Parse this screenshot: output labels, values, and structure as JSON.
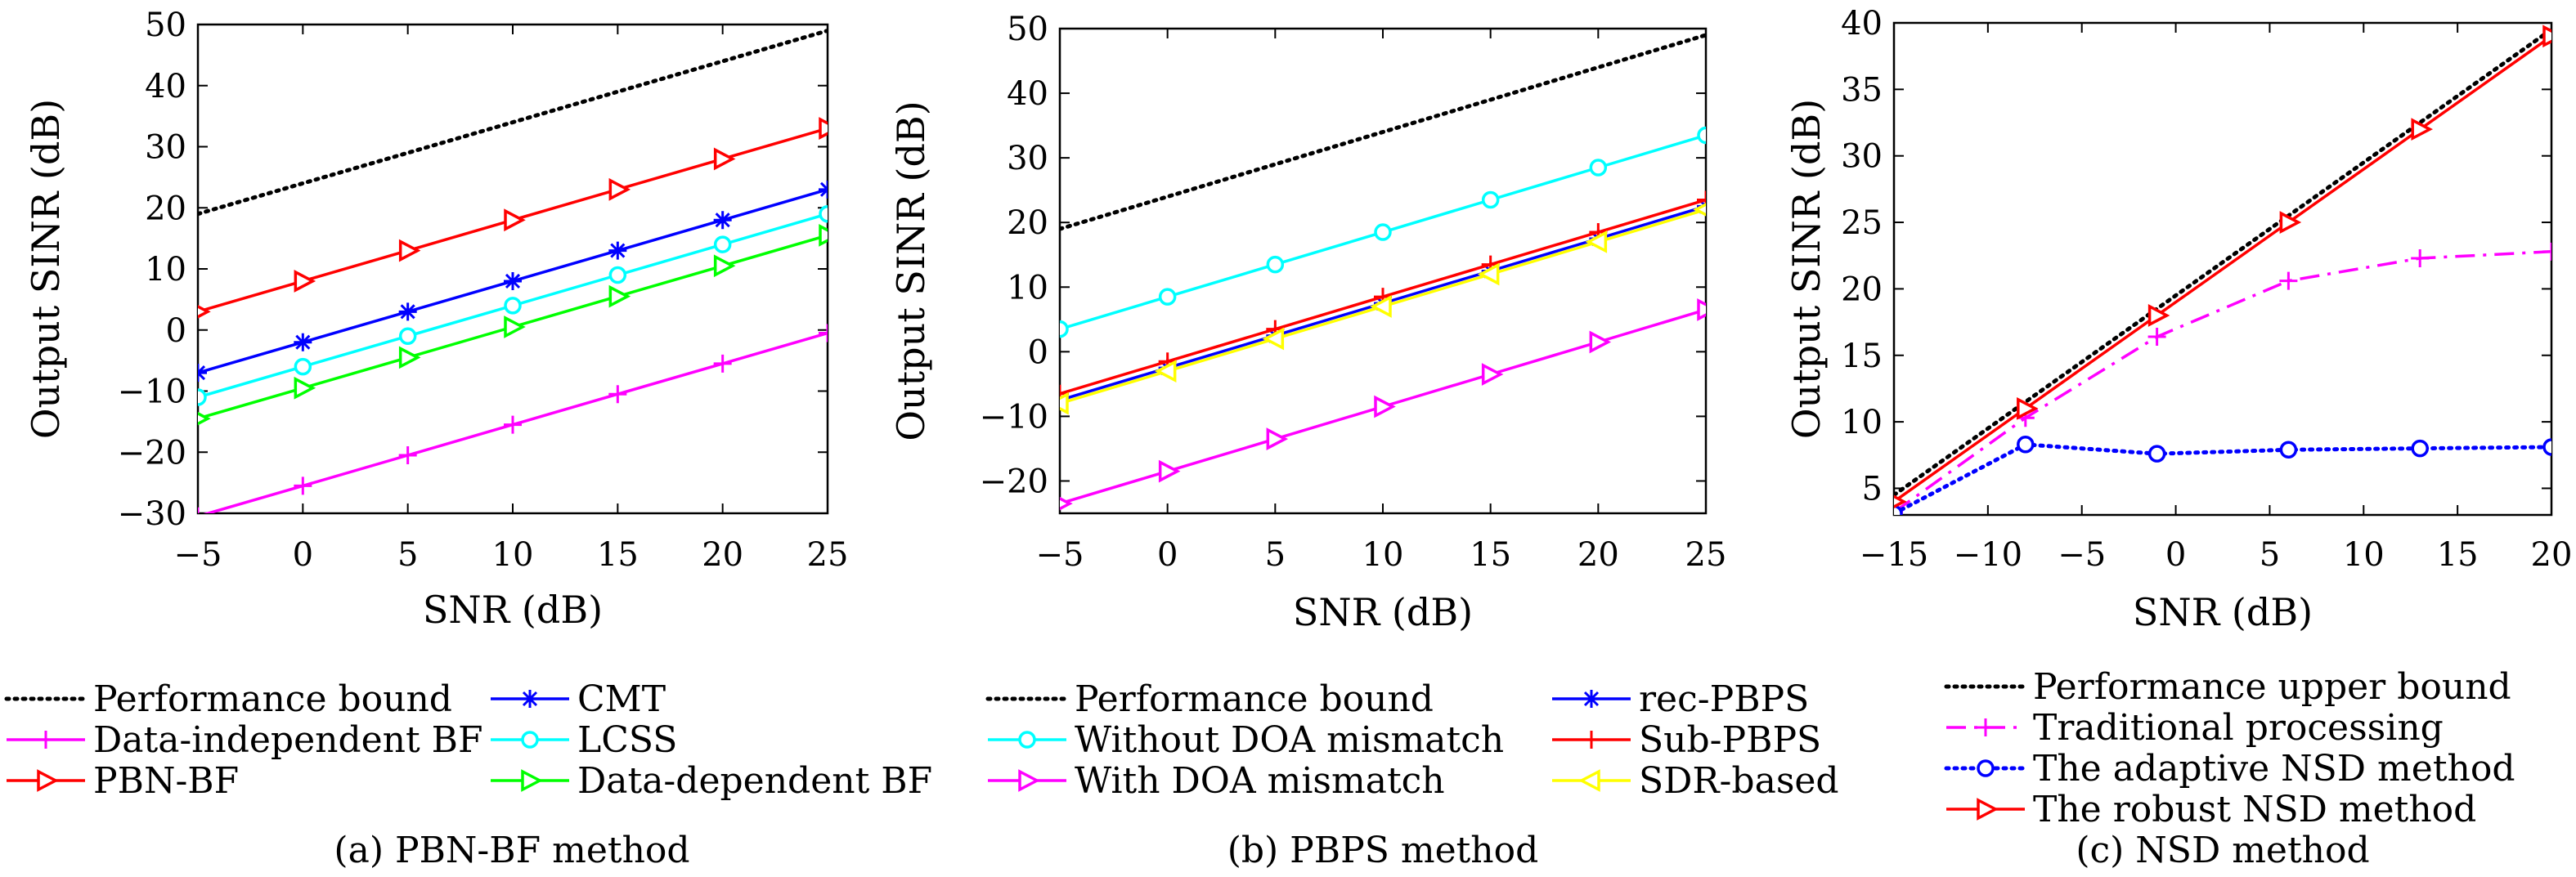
{
  "chart_data": [
    {
      "type": "line",
      "caption": "(a) PBN-BF method",
      "xlabel": "SNR (dB)",
      "ylabel": "Output SINR (dB)",
      "xlim": [
        -5,
        25
      ],
      "ylim": [
        -30,
        50
      ],
      "xticks": [
        -5,
        0,
        5,
        10,
        15,
        20,
        25
      ],
      "yticks": [
        -30,
        -20,
        -10,
        0,
        10,
        20,
        30,
        40,
        50
      ],
      "x": [
        -5,
        0,
        5,
        10,
        15,
        20,
        25
      ],
      "legend_columns": 2,
      "series": [
        {
          "name": "Performance bound",
          "color": "#000000",
          "dash": "dotted",
          "marker": "none",
          "values": [
            19,
            24,
            29,
            34,
            39,
            44,
            49
          ]
        },
        {
          "name": "Data-independent BF",
          "color": "#ff00ff",
          "dash": "solid",
          "marker": "plus",
          "values": [
            -30.5,
            -25.5,
            -20.5,
            -15.5,
            -10.5,
            -5.5,
            -0.5
          ]
        },
        {
          "name": "PBN-BF",
          "color": "#ff0000",
          "dash": "solid",
          "marker": "triangle-right",
          "values": [
            3,
            8,
            13,
            18,
            23,
            28,
            33
          ]
        },
        {
          "name": "CMT",
          "color": "#0000ff",
          "dash": "solid",
          "marker": "star",
          "values": [
            -7,
            -2,
            3,
            8,
            13,
            18,
            23
          ]
        },
        {
          "name": "LCSS",
          "color": "#00ffff",
          "dash": "solid",
          "marker": "circle",
          "values": [
            -11,
            -6,
            -1,
            4,
            9,
            14,
            19
          ]
        },
        {
          "name": "Data-dependent BF",
          "color": "#00ff00",
          "dash": "solid",
          "marker": "triangle-right",
          "values": [
            -14.5,
            -9.5,
            -4.5,
            0.5,
            5.5,
            10.5,
            15.5
          ]
        }
      ]
    },
    {
      "type": "line",
      "caption": "(b) PBPS method",
      "xlabel": "SNR (dB)",
      "ylabel": "Output SINR (dB)",
      "xlim": [
        -5,
        25
      ],
      "ylim": [
        -25,
        50
      ],
      "xticks": [
        -5,
        0,
        5,
        10,
        15,
        20,
        25
      ],
      "yticks": [
        -20,
        -10,
        0,
        10,
        20,
        30,
        40,
        50
      ],
      "x": [
        -5,
        0,
        5,
        10,
        15,
        20,
        25
      ],
      "legend_columns": 2,
      "series": [
        {
          "name": "Performance bound",
          "color": "#000000",
          "dash": "dotted",
          "marker": "none",
          "values": [
            19,
            24,
            29,
            34,
            39,
            44,
            49
          ]
        },
        {
          "name": "Without DOA mismatch",
          "color": "#00ffff",
          "dash": "solid",
          "marker": "circle",
          "values": [
            3.5,
            8.5,
            13.5,
            18.5,
            23.5,
            28.5,
            33.5
          ]
        },
        {
          "name": "With DOA mismatch",
          "color": "#ff00ff",
          "dash": "solid",
          "marker": "triangle-right",
          "values": [
            -23.5,
            -18.5,
            -13.5,
            -8.5,
            -3.5,
            1.5,
            6.5
          ]
        },
        {
          "name": "rec-PBPS",
          "color": "#0000ff",
          "dash": "solid",
          "marker": "star",
          "values": [
            -7.5,
            -2.5,
            2.5,
            7.5,
            12.5,
            17.5,
            22.5
          ]
        },
        {
          "name": "Sub-PBPS",
          "color": "#ff0000",
          "dash": "solid",
          "marker": "plus",
          "values": [
            -6.5,
            -1.5,
            3.5,
            8.5,
            13.5,
            18.5,
            23.5
          ]
        },
        {
          "name": "SDR-based",
          "color": "#ffff00",
          "dash": "solid",
          "marker": "triangle-left",
          "values": [
            -8,
            -3,
            2,
            7,
            12,
            17,
            22
          ]
        }
      ]
    },
    {
      "type": "line",
      "caption": "(c) NSD method",
      "xlabel": "SNR (dB)",
      "ylabel": "Output SINR (dB)",
      "xlim": [
        -15,
        20
      ],
      "ylim": [
        3,
        40
      ],
      "xticks": [
        -15,
        -10,
        -5,
        0,
        5,
        10,
        15,
        20
      ],
      "yticks": [
        5,
        10,
        15,
        20,
        25,
        30,
        35,
        40
      ],
      "x": [
        -15,
        -8,
        -1,
        6,
        13,
        20
      ],
      "legend_columns": 1,
      "series": [
        {
          "name": "Performance upper bound",
          "color": "#000000",
          "dash": "dotted",
          "marker": "none",
          "values": [
            4.5,
            11.5,
            18.5,
            25.5,
            32.5,
            39.5
          ]
        },
        {
          "name": "Traditional processing",
          "color": "#ff00ff",
          "dash": "dashdot",
          "marker": "plus",
          "values": [
            3.2,
            10.3,
            16.4,
            20.6,
            22.3,
            22.8
          ]
        },
        {
          "name": "The adaptive NSD method",
          "color": "#0000ff",
          "dash": "dotted",
          "marker": "circle",
          "values": [
            3.1,
            8.3,
            7.6,
            7.9,
            8.0,
            8.1
          ]
        },
        {
          "name": "The robust NSD method",
          "color": "#ff0000",
          "dash": "solid",
          "marker": "triangle-right",
          "values": [
            4,
            11,
            18,
            25,
            32,
            39
          ]
        }
      ]
    }
  ]
}
